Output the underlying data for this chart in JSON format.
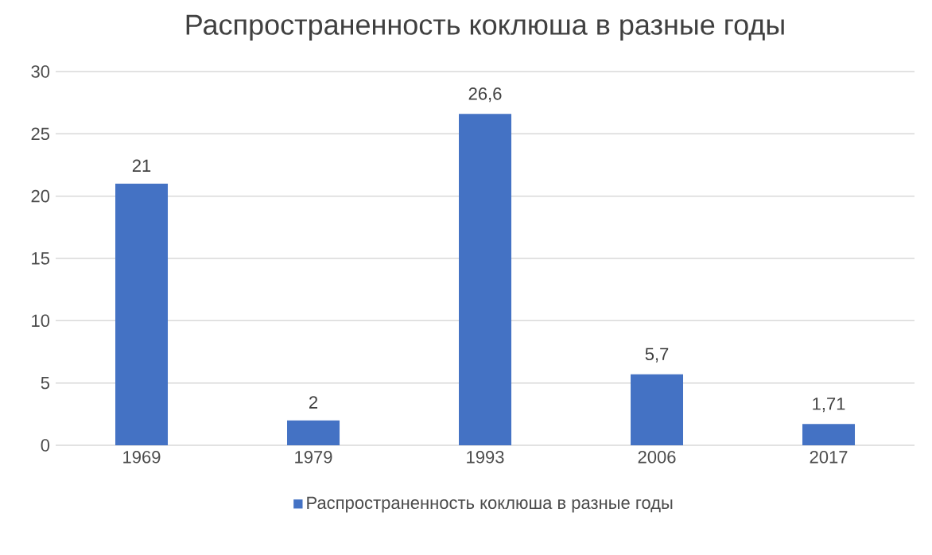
{
  "chart_data": {
    "type": "bar",
    "title": "Распространенность коклюша в разные годы",
    "categories": [
      "1969",
      "1979",
      "1993",
      "2006",
      "2017"
    ],
    "series": [
      {
        "name": "Распространенность коклюша в разные годы",
        "color": "#4472c4",
        "values": [
          21,
          2,
          26.6,
          5.7,
          1.71
        ],
        "value_labels": [
          "21",
          "2",
          "26,6",
          "5,7",
          "1,71"
        ]
      }
    ],
    "ylim": [
      0,
      30
    ],
    "yticks": [
      0,
      5,
      10,
      15,
      20,
      25,
      30
    ],
    "grid": "y",
    "legend": "bottom"
  }
}
